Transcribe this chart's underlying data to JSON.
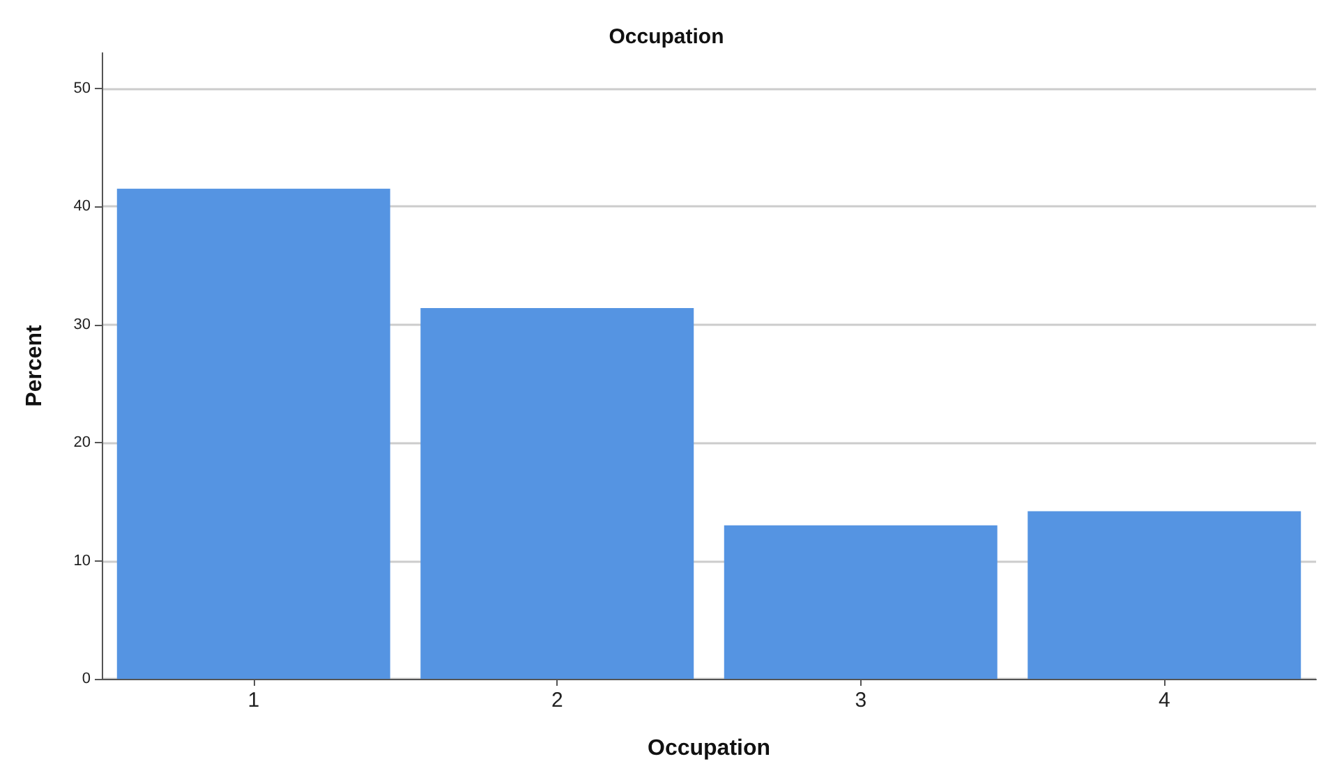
{
  "chart_data": {
    "type": "bar",
    "title": "Occupation",
    "xlabel": "Occupation",
    "ylabel": "Percent",
    "categories": [
      "1",
      "2",
      "3",
      "4"
    ],
    "values": [
      41.5,
      31.4,
      13.0,
      14.2
    ],
    "color": "#5594e2",
    "ylim": [
      0,
      53
    ],
    "yticks": [
      0,
      10,
      20,
      30,
      40,
      50
    ],
    "grid": "y"
  }
}
